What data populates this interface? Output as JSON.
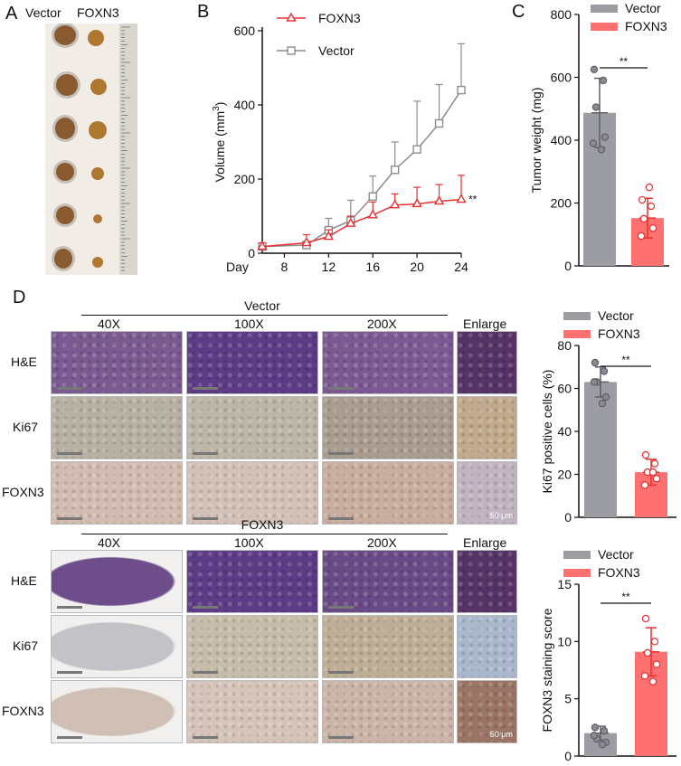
{
  "panels": {
    "a": "A",
    "b": "B",
    "c": "C",
    "d": "D"
  },
  "photo_a": {
    "col_labels": [
      "Vector",
      "FOXN3"
    ],
    "colors": {
      "bg": "#f3efe9",
      "tumor": "#8a5a30",
      "ruler": "#d6d3cc"
    }
  },
  "chart_data": [
    {
      "id": "growth",
      "type": "line",
      "xlabel": "Day",
      "ylabel": "Volume (mm³)",
      "ylabel_main": "Volume (mm",
      "ylabel_sup": "3",
      "ylabel_close": ")",
      "xlim": [
        6,
        24
      ],
      "ylim": [
        0,
        600
      ],
      "xticks": [
        8,
        12,
        16,
        20,
        24
      ],
      "yticks": [
        0,
        200,
        400,
        600
      ],
      "x": [
        6,
        10,
        12,
        14,
        16,
        18,
        20,
        22,
        24
      ],
      "series": [
        {
          "name": "FOXN3",
          "color": "#e8302f",
          "marker": "triangle",
          "values": [
            18,
            28,
            45,
            80,
            103,
            130,
            133,
            140,
            145
          ],
          "err": [
            10,
            22,
            18,
            20,
            35,
            30,
            45,
            45,
            65
          ]
        },
        {
          "name": "Vector",
          "color": "#8c8c8c",
          "marker": "square",
          "values": [
            18,
            22,
            62,
            88,
            153,
            225,
            280,
            350,
            440
          ],
          "err": [
            10,
            10,
            32,
            55,
            55,
            75,
            130,
            105,
            125
          ]
        }
      ],
      "annotation": "**"
    },
    {
      "id": "weight",
      "type": "bar",
      "ylabel": "Tumor weight (mg)",
      "ylim": [
        0,
        800
      ],
      "yticks": [
        0,
        200,
        400,
        600,
        800
      ],
      "categories": [
        "Vector",
        "FOXN3"
      ],
      "colors": [
        "#9c9ca3",
        "#ff7070"
      ],
      "values": [
        487,
        152
      ],
      "err": [
        110,
        63
      ],
      "points": [
        [
          625,
          590,
          505,
          410,
          390,
          370
        ],
        [
          210,
          190,
          150,
          120,
          95,
          250
        ]
      ],
      "legend": [
        "Vector",
        "FOXN3"
      ],
      "sig": "**"
    },
    {
      "id": "ki67",
      "type": "bar",
      "ylabel": "Ki67 positive cells (%)",
      "ylim": [
        0,
        80
      ],
      "yticks": [
        0,
        20,
        40,
        60,
        80
      ],
      "categories": [
        "Vector",
        "FOXN3"
      ],
      "colors": [
        "#9c9ca3",
        "#ff7070"
      ],
      "values": [
        63,
        21
      ],
      "err": [
        7,
        6
      ],
      "points": [
        [
          72,
          68,
          63,
          56,
          63,
          53
        ],
        [
          29,
          25,
          21,
          18,
          15,
          21
        ]
      ],
      "legend": [
        "Vector",
        "FOXN3"
      ],
      "sig": "**"
    },
    {
      "id": "foxn3score",
      "type": "bar",
      "ylabel": "FOXN3 staining score",
      "ylim": [
        0,
        15
      ],
      "yticks": [
        0,
        5,
        10,
        15
      ],
      "categories": [
        "Vector",
        "FOXN3"
      ],
      "colors": [
        "#9c9ca3",
        "#ff7070"
      ],
      "values": [
        2.0,
        9.1
      ],
      "err": [
        0.6,
        2.1
      ],
      "points": [
        [
          2.5,
          2.2,
          1.5,
          1.2,
          1.8,
          1.0
        ],
        [
          12,
          10,
          9,
          8,
          7,
          6.5
        ]
      ],
      "legend": [
        "Vector",
        "FOXN3"
      ],
      "sig": "**"
    }
  ],
  "histology": {
    "groups": [
      {
        "title": "Vector",
        "col_headers": [
          "40X",
          "100X",
          "200X",
          "Enlarge"
        ],
        "rows": [
          "H&E",
          "Ki67",
          "FOXN3"
        ],
        "scale_label": "50 μm"
      },
      {
        "title": "FOXN3",
        "col_headers": [
          "40X",
          "100X",
          "200X",
          "Enlarge"
        ],
        "rows": [
          "H&E",
          "Ki67",
          "FOXN3"
        ],
        "scale_label": "50 μm"
      }
    ],
    "stain_colors": {
      "he": "#6b4a88",
      "ki67": "#b9b4ac",
      "foxn3": "#d7c3b7"
    }
  }
}
